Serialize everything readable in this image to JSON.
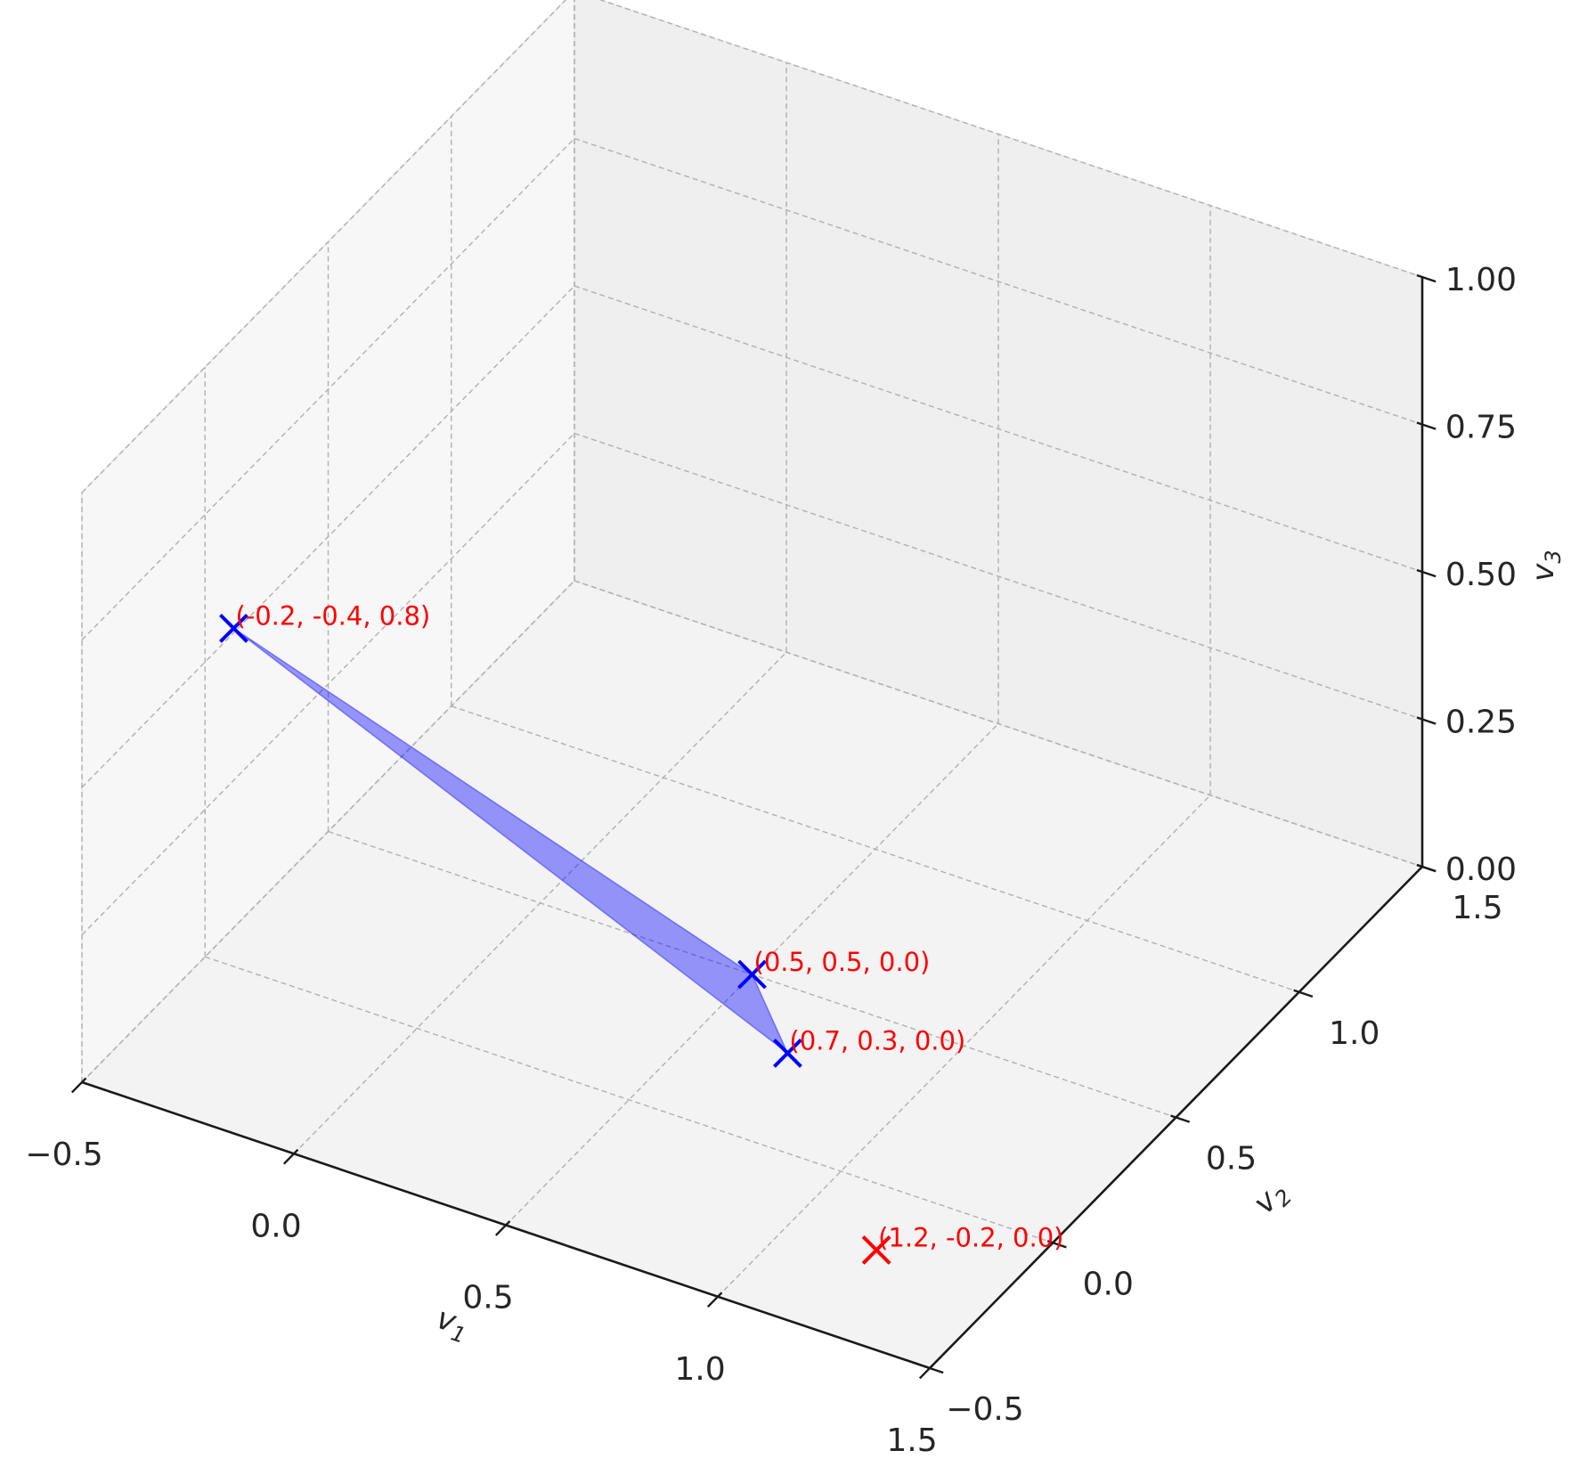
{
  "chart_data": {
    "type": "scatter3d",
    "title": "",
    "xlabel": "v₁",
    "ylabel": "v₂",
    "zlabel": "v₃",
    "axis_labels": {
      "x": {
        "base": "v",
        "sub": "1"
      },
      "y": {
        "base": "v",
        "sub": "2"
      },
      "z": {
        "base": "v",
        "sub": "3"
      }
    },
    "xlim": [
      -0.5,
      1.5
    ],
    "ylim": [
      -0.5,
      1.5
    ],
    "zlim": [
      0.0,
      1.0
    ],
    "x_ticks": [
      "−0.5",
      "0.0",
      "0.5",
      "1.0",
      "1.5"
    ],
    "y_ticks": [
      "−0.5",
      "0.0",
      "0.5",
      "1.0",
      "1.5"
    ],
    "z_ticks": [
      "0.00",
      "0.25",
      "0.50",
      "0.75",
      "1.00"
    ],
    "grid": true,
    "points": [
      {
        "x": -0.2,
        "y": -0.4,
        "z": 0.8,
        "label": "(-0.2, -0.4, 0.8)",
        "color": "#0000ff"
      },
      {
        "x": 0.5,
        "y": 0.5,
        "z": 0.0,
        "label": "(0.5, 0.5, 0.0)",
        "color": "#0000ff"
      },
      {
        "x": 0.7,
        "y": 0.3,
        "z": 0.0,
        "label": "(0.7, 0.3, 0.0)",
        "color": "#0000ff"
      },
      {
        "x": 1.2,
        "y": -0.2,
        "z": 0.0,
        "label": "(1.2, -0.2, 0.0)",
        "color": "#ff0000"
      }
    ],
    "polygon": {
      "vertices": [
        [
          -0.2,
          -0.4,
          0.8
        ],
        [
          0.5,
          0.5,
          0.0
        ],
        [
          0.7,
          0.3,
          0.0
        ]
      ],
      "fill": "#0000ff",
      "opacity": 0.4
    },
    "label_color": "#ff0000"
  }
}
